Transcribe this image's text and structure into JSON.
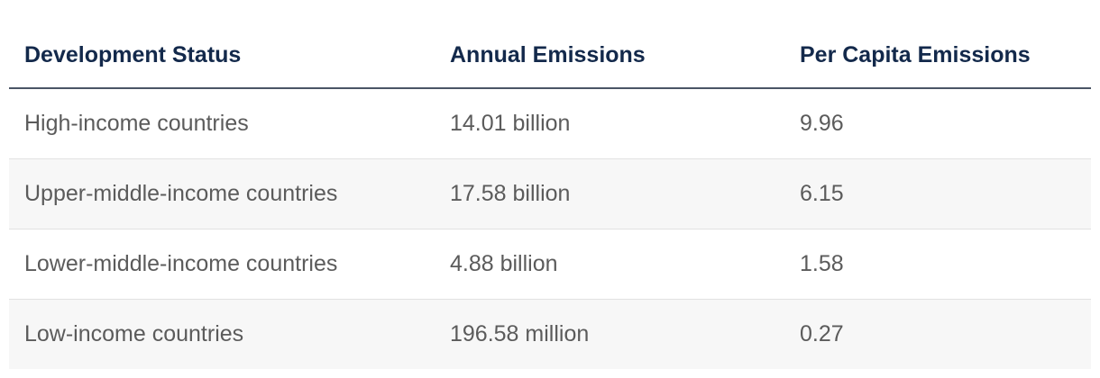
{
  "table": {
    "headers": [
      "Development Status",
      "Annual Emissions",
      "Per Capita Emissions"
    ],
    "rows": [
      [
        "High-income countries",
        "14.01 billion",
        "9.96"
      ],
      [
        "Upper-middle-income countries",
        "17.58 billion",
        "6.15"
      ],
      [
        "Lower-middle-income countries",
        "4.88 billion",
        "1.58"
      ],
      [
        "Low-income countries",
        "196.58 million",
        "0.27"
      ]
    ]
  }
}
